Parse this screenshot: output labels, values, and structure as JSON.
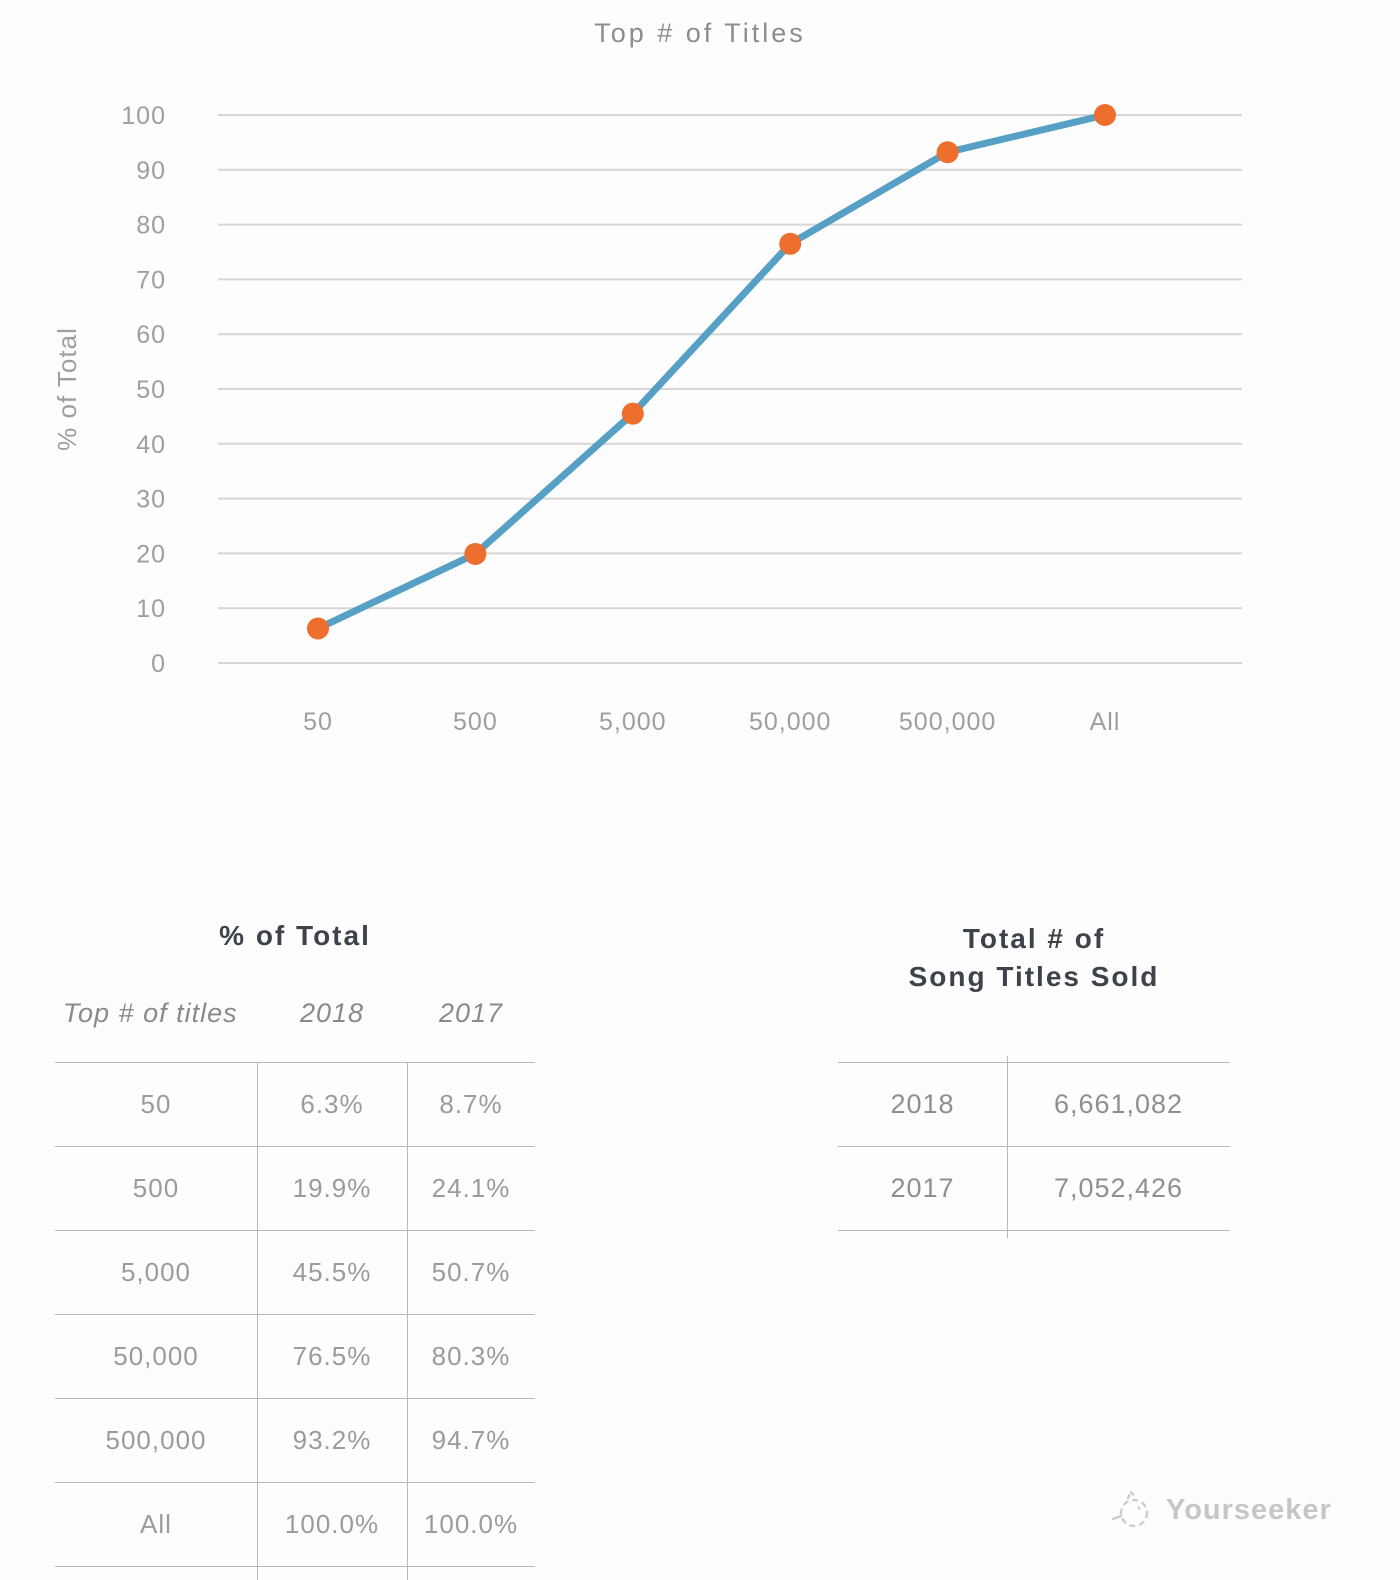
{
  "chart_data": {
    "type": "line",
    "title": "Top # of Titles",
    "xlabel": "",
    "ylabel": "% of Total",
    "categories": [
      "50",
      "500",
      "5,000",
      "50,000",
      "500,000",
      "All"
    ],
    "series": [
      {
        "name": "2018",
        "values": [
          6.3,
          19.9,
          45.5,
          76.5,
          93.2,
          100.0
        ]
      }
    ],
    "ylim": [
      0,
      100
    ],
    "ytick_step": 10,
    "grid": true,
    "legend": false,
    "colors": {
      "line": "#56a0c6",
      "marker": "#ed6e2d",
      "gridline": "#d6d6d6",
      "tick_text": "#9e9e9e"
    }
  },
  "percent_table": {
    "title": "% of Total",
    "columns": [
      "Top # of titles",
      "2018",
      "2017"
    ],
    "rows": [
      [
        "50",
        "6.3%",
        "8.7%"
      ],
      [
        "500",
        "19.9%",
        "24.1%"
      ],
      [
        "5,000",
        "45.5%",
        "50.7%"
      ],
      [
        "50,000",
        "76.5%",
        "80.3%"
      ],
      [
        "500,000",
        "93.2%",
        "94.7%"
      ],
      [
        "All",
        "100.0%",
        "100.0%"
      ]
    ]
  },
  "totals_table": {
    "title_line1": "Total # of",
    "title_line2": "Song Titles Sold",
    "rows": [
      [
        "2018",
        "6,661,082"
      ],
      [
        "2017",
        "7,052,426"
      ]
    ]
  },
  "watermark": {
    "label": "Yourseeker"
  }
}
